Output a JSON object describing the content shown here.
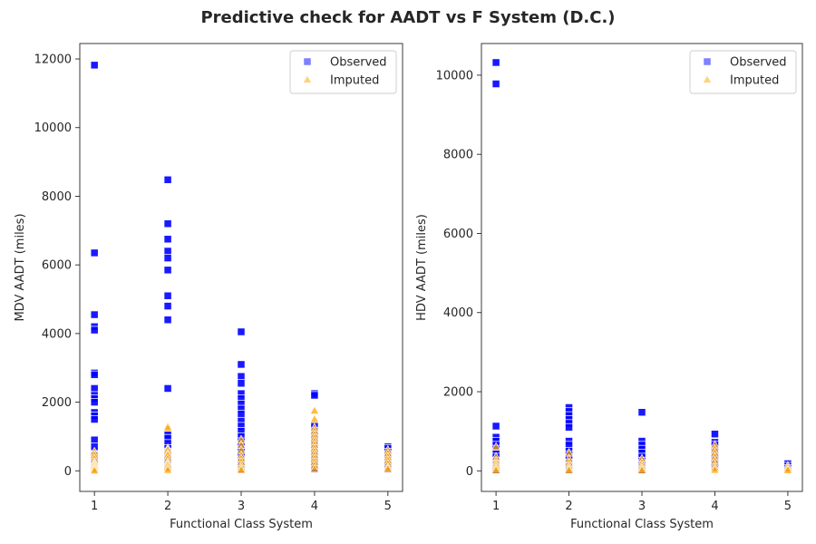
{
  "figure": {
    "title": "Predictive check for AADT vs F System (D.C.)"
  },
  "chart_data": [
    {
      "type": "scatter",
      "xlabel": "Functional Class System",
      "ylabel": "MDV AADT (miles)",
      "xlim": [
        0.8,
        5.2
      ],
      "ylim": [
        -600,
        12450
      ],
      "xticks": [
        1,
        2,
        3,
        4,
        5
      ],
      "yticks": [
        0,
        2000,
        4000,
        6000,
        8000,
        10000,
        12000
      ],
      "grid": false,
      "legend_position": "top-right",
      "legend": [
        {
          "label": "Observed",
          "marker": "square",
          "color": "#0000ff"
        },
        {
          "label": "Imputed",
          "marker": "triangle",
          "color": "#ffa500"
        }
      ],
      "series": [
        {
          "name": "Observed",
          "marker": "square",
          "color": "#0000ff",
          "points": [
            [
              1,
              11820
            ],
            [
              1,
              6350
            ],
            [
              1,
              4550
            ],
            [
              1,
              4200
            ],
            [
              1,
              4100
            ],
            [
              1,
              2850
            ],
            [
              1,
              2800
            ],
            [
              1,
              2400
            ],
            [
              1,
              2200
            ],
            [
              1,
              2100
            ],
            [
              1,
              2000
            ],
            [
              1,
              1700
            ],
            [
              1,
              1600
            ],
            [
              1,
              1500
            ],
            [
              1,
              900
            ],
            [
              1,
              700
            ],
            [
              1,
              450
            ],
            [
              1,
              300
            ],
            [
              1,
              200
            ],
            [
              1,
              100
            ],
            [
              1,
              50
            ],
            [
              2,
              8480
            ],
            [
              2,
              7200
            ],
            [
              2,
              6750
            ],
            [
              2,
              6400
            ],
            [
              2,
              6200
            ],
            [
              2,
              5850
            ],
            [
              2,
              5100
            ],
            [
              2,
              4800
            ],
            [
              2,
              4400
            ],
            [
              2,
              2400
            ],
            [
              2,
              1050
            ],
            [
              2,
              950
            ],
            [
              2,
              800
            ],
            [
              2,
              650
            ],
            [
              2,
              550
            ],
            [
              2,
              400
            ],
            [
              2,
              300
            ],
            [
              2,
              200
            ],
            [
              2,
              100
            ],
            [
              3,
              4050
            ],
            [
              3,
              3100
            ],
            [
              3,
              2750
            ],
            [
              3,
              2550
            ],
            [
              3,
              2250
            ],
            [
              3,
              2100
            ],
            [
              3,
              1950
            ],
            [
              3,
              1800
            ],
            [
              3,
              1650
            ],
            [
              3,
              1450
            ],
            [
              3,
              1300
            ],
            [
              3,
              1150
            ],
            [
              3,
              1000
            ],
            [
              3,
              850
            ],
            [
              3,
              700
            ],
            [
              3,
              550
            ],
            [
              3,
              400
            ],
            [
              3,
              250
            ],
            [
              3,
              150
            ],
            [
              3,
              50
            ],
            [
              4,
              2250
            ],
            [
              4,
              2200
            ],
            [
              4,
              1300
            ],
            [
              4,
              1150
            ],
            [
              4,
              1050
            ],
            [
              4,
              950
            ],
            [
              4,
              800
            ],
            [
              4,
              650
            ],
            [
              4,
              500
            ],
            [
              4,
              350
            ],
            [
              4,
              200
            ],
            [
              4,
              50
            ],
            [
              5,
              700
            ],
            [
              5,
              650
            ],
            [
              5,
              550
            ],
            [
              5,
              400
            ],
            [
              5,
              250
            ],
            [
              5,
              150
            ],
            [
              5,
              50
            ]
          ]
        },
        {
          "name": "Imputed",
          "marker": "triangle",
          "color": "#ffa500",
          "points": [
            [
              1,
              550
            ],
            [
              1,
              450
            ],
            [
              1,
              350
            ],
            [
              1,
              250
            ],
            [
              1,
              200
            ],
            [
              1,
              150
            ],
            [
              1,
              100
            ],
            [
              1,
              50
            ],
            [
              1,
              0
            ],
            [
              2,
              1300
            ],
            [
              2,
              1250
            ],
            [
              2,
              650
            ],
            [
              2,
              600
            ],
            [
              2,
              500
            ],
            [
              2,
              450
            ],
            [
              2,
              350
            ],
            [
              2,
              250
            ],
            [
              2,
              200
            ],
            [
              2,
              150
            ],
            [
              2,
              80
            ],
            [
              2,
              20
            ],
            [
              3,
              900
            ],
            [
              3,
              750
            ],
            [
              3,
              600
            ],
            [
              3,
              450
            ],
            [
              3,
              350
            ],
            [
              3,
              250
            ],
            [
              3,
              150
            ],
            [
              3,
              80
            ],
            [
              3,
              20
            ],
            [
              4,
              1750
            ],
            [
              4,
              1500
            ],
            [
              4,
              1250
            ],
            [
              4,
              1150
            ],
            [
              4,
              1050
            ],
            [
              4,
              950
            ],
            [
              4,
              850
            ],
            [
              4,
              750
            ],
            [
              4,
              650
            ],
            [
              4,
              550
            ],
            [
              4,
              450
            ],
            [
              4,
              350
            ],
            [
              4,
              250
            ],
            [
              4,
              150
            ],
            [
              4,
              50
            ],
            [
              5,
              600
            ],
            [
              5,
              500
            ],
            [
              5,
              400
            ],
            [
              5,
              300
            ],
            [
              5,
              200
            ],
            [
              5,
              100
            ],
            [
              5,
              50
            ]
          ]
        }
      ]
    },
    {
      "type": "scatter",
      "xlabel": "Functional Class System",
      "ylabel": "HDV AADT (miles)",
      "xlim": [
        0.8,
        5.2
      ],
      "ylim": [
        -520,
        10800
      ],
      "xticks": [
        1,
        2,
        3,
        4,
        5
      ],
      "yticks": [
        0,
        2000,
        4000,
        6000,
        8000,
        10000
      ],
      "grid": false,
      "legend_position": "top-right",
      "legend": [
        {
          "label": "Observed",
          "marker": "square",
          "color": "#0000ff"
        },
        {
          "label": "Imputed",
          "marker": "triangle",
          "color": "#ffa500"
        }
      ],
      "series": [
        {
          "name": "Observed",
          "marker": "square",
          "color": "#0000ff",
          "points": [
            [
              1,
              10320
            ],
            [
              1,
              9780
            ],
            [
              1,
              1130
            ],
            [
              1,
              850
            ],
            [
              1,
              750
            ],
            [
              1,
              650
            ],
            [
              1,
              550
            ],
            [
              1,
              450
            ],
            [
              1,
              350
            ],
            [
              1,
              250
            ],
            [
              1,
              150
            ],
            [
              1,
              80
            ],
            [
              1,
              20
            ],
            [
              2,
              1600
            ],
            [
              2,
              1500
            ],
            [
              2,
              1400
            ],
            [
              2,
              1300
            ],
            [
              2,
              1200
            ],
            [
              2,
              1100
            ],
            [
              2,
              750
            ],
            [
              2,
              650
            ],
            [
              2,
              500
            ],
            [
              2,
              400
            ],
            [
              2,
              300
            ],
            [
              2,
              200
            ],
            [
              2,
              100
            ],
            [
              2,
              30
            ],
            [
              3,
              1480
            ],
            [
              3,
              750
            ],
            [
              3,
              650
            ],
            [
              3,
              550
            ],
            [
              3,
              450
            ],
            [
              3,
              350
            ],
            [
              3,
              250
            ],
            [
              3,
              150
            ],
            [
              3,
              80
            ],
            [
              3,
              20
            ],
            [
              4,
              930
            ],
            [
              4,
              720
            ],
            [
              4,
              650
            ],
            [
              4,
              500
            ],
            [
              4,
              350
            ],
            [
              4,
              200
            ],
            [
              4,
              80
            ],
            [
              5,
              180
            ],
            [
              5,
              120
            ],
            [
              5,
              60
            ]
          ]
        },
        {
          "name": "Imputed",
          "marker": "triangle",
          "color": "#ffa500",
          "points": [
            [
              1,
              600
            ],
            [
              1,
              350
            ],
            [
              1,
              250
            ],
            [
              1,
              180
            ],
            [
              1,
              120
            ],
            [
              1,
              60
            ],
            [
              1,
              10
            ],
            [
              2,
              450
            ],
            [
              2,
              300
            ],
            [
              2,
              200
            ],
            [
              2,
              120
            ],
            [
              2,
              60
            ],
            [
              2,
              10
            ],
            [
              3,
              300
            ],
            [
              3,
              200
            ],
            [
              3,
              120
            ],
            [
              3,
              60
            ],
            [
              3,
              10
            ],
            [
              4,
              650
            ],
            [
              4,
              550
            ],
            [
              4,
              450
            ],
            [
              4,
              350
            ],
            [
              4,
              250
            ],
            [
              4,
              150
            ],
            [
              4,
              80
            ],
            [
              4,
              20
            ],
            [
              5,
              120
            ],
            [
              5,
              60
            ],
            [
              5,
              10
            ]
          ]
        }
      ]
    }
  ]
}
